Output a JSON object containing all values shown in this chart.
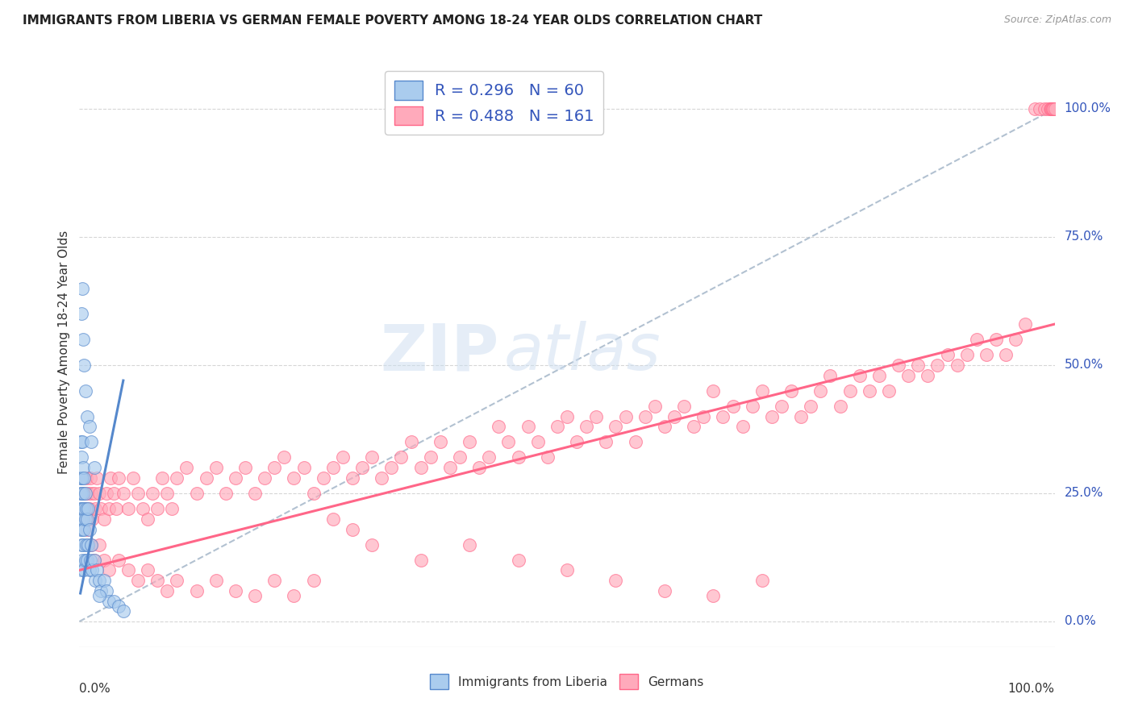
{
  "title": "IMMIGRANTS FROM LIBERIA VS GERMAN FEMALE POVERTY AMONG 18-24 YEAR OLDS CORRELATION CHART",
  "source": "Source: ZipAtlas.com",
  "ylabel": "Female Poverty Among 18-24 Year Olds",
  "xlim": [
    0,
    1.0
  ],
  "ylim": [
    -0.05,
    1.1
  ],
  "yticks_right": [
    0.0,
    0.25,
    0.5,
    0.75,
    1.0
  ],
  "ytick_labels_right": [
    "0.0%",
    "25.0%",
    "50.0%",
    "75.0%",
    "100.0%"
  ],
  "watermark_zip": "ZIP",
  "watermark_atlas": "atlas",
  "blue_color": "#5588CC",
  "blue_fill": "#AACCEE",
  "pink_color": "#FF6688",
  "pink_fill": "#FFAABB",
  "blue_label": "Immigrants from Liberia",
  "pink_label": "Germans",
  "blue_R": "0.296",
  "blue_N": "60",
  "pink_R": "0.488",
  "pink_N": "161",
  "legend_color": "#3355BB",
  "grid_color": "#CCCCCC",
  "background_color": "#FFFFFF",
  "blue_scatter_x": [
    0.001,
    0.001,
    0.001,
    0.001,
    0.001,
    0.002,
    0.002,
    0.002,
    0.002,
    0.002,
    0.002,
    0.002,
    0.003,
    0.003,
    0.003,
    0.003,
    0.003,
    0.004,
    0.004,
    0.004,
    0.004,
    0.005,
    0.005,
    0.005,
    0.005,
    0.006,
    0.006,
    0.006,
    0.007,
    0.007,
    0.008,
    0.008,
    0.009,
    0.009,
    0.01,
    0.01,
    0.011,
    0.012,
    0.013,
    0.015,
    0.016,
    0.018,
    0.02,
    0.022,
    0.025,
    0.028,
    0.03,
    0.035,
    0.04,
    0.045,
    0.002,
    0.003,
    0.004,
    0.005,
    0.006,
    0.008,
    0.01,
    0.012,
    0.015,
    0.02
  ],
  "blue_scatter_y": [
    0.18,
    0.22,
    0.25,
    0.28,
    0.35,
    0.1,
    0.15,
    0.2,
    0.22,
    0.25,
    0.28,
    0.32,
    0.12,
    0.18,
    0.22,
    0.28,
    0.35,
    0.15,
    0.2,
    0.25,
    0.3,
    0.1,
    0.18,
    0.22,
    0.28,
    0.12,
    0.2,
    0.25,
    0.15,
    0.22,
    0.12,
    0.2,
    0.15,
    0.22,
    0.1,
    0.18,
    0.12,
    0.15,
    0.1,
    0.12,
    0.08,
    0.1,
    0.08,
    0.06,
    0.08,
    0.06,
    0.04,
    0.04,
    0.03,
    0.02,
    0.6,
    0.65,
    0.55,
    0.5,
    0.45,
    0.4,
    0.38,
    0.35,
    0.3,
    0.05
  ],
  "pink_scatter_x": [
    0.005,
    0.006,
    0.007,
    0.008,
    0.009,
    0.01,
    0.011,
    0.012,
    0.013,
    0.015,
    0.016,
    0.018,
    0.02,
    0.022,
    0.025,
    0.028,
    0.03,
    0.032,
    0.035,
    0.038,
    0.04,
    0.045,
    0.05,
    0.055,
    0.06,
    0.065,
    0.07,
    0.075,
    0.08,
    0.085,
    0.09,
    0.095,
    0.1,
    0.11,
    0.12,
    0.13,
    0.14,
    0.15,
    0.16,
    0.17,
    0.18,
    0.19,
    0.2,
    0.21,
    0.22,
    0.23,
    0.24,
    0.25,
    0.26,
    0.27,
    0.28,
    0.29,
    0.3,
    0.31,
    0.32,
    0.33,
    0.34,
    0.35,
    0.36,
    0.37,
    0.38,
    0.39,
    0.4,
    0.41,
    0.42,
    0.43,
    0.44,
    0.45,
    0.46,
    0.47,
    0.48,
    0.49,
    0.5,
    0.51,
    0.52,
    0.53,
    0.54,
    0.55,
    0.56,
    0.57,
    0.58,
    0.59,
    0.6,
    0.61,
    0.62,
    0.63,
    0.64,
    0.65,
    0.66,
    0.67,
    0.68,
    0.69,
    0.7,
    0.71,
    0.72,
    0.73,
    0.74,
    0.75,
    0.76,
    0.77,
    0.78,
    0.79,
    0.8,
    0.81,
    0.82,
    0.83,
    0.84,
    0.85,
    0.86,
    0.87,
    0.88,
    0.89,
    0.9,
    0.91,
    0.92,
    0.93,
    0.94,
    0.95,
    0.96,
    0.97,
    0.98,
    0.985,
    0.99,
    0.993,
    0.995,
    0.996,
    0.997,
    0.998,
    0.999,
    1.0,
    0.008,
    0.012,
    0.015,
    0.02,
    0.025,
    0.03,
    0.04,
    0.05,
    0.06,
    0.07,
    0.08,
    0.09,
    0.1,
    0.12,
    0.14,
    0.16,
    0.18,
    0.2,
    0.22,
    0.24,
    0.26,
    0.28,
    0.3,
    0.35,
    0.4,
    0.45,
    0.5,
    0.55,
    0.6,
    0.65,
    0.7
  ],
  "pink_scatter_y": [
    0.25,
    0.22,
    0.28,
    0.2,
    0.25,
    0.22,
    0.28,
    0.25,
    0.2,
    0.25,
    0.22,
    0.28,
    0.25,
    0.22,
    0.2,
    0.25,
    0.22,
    0.28,
    0.25,
    0.22,
    0.28,
    0.25,
    0.22,
    0.28,
    0.25,
    0.22,
    0.2,
    0.25,
    0.22,
    0.28,
    0.25,
    0.22,
    0.28,
    0.3,
    0.25,
    0.28,
    0.3,
    0.25,
    0.28,
    0.3,
    0.25,
    0.28,
    0.3,
    0.32,
    0.28,
    0.3,
    0.25,
    0.28,
    0.3,
    0.32,
    0.28,
    0.3,
    0.32,
    0.28,
    0.3,
    0.32,
    0.35,
    0.3,
    0.32,
    0.35,
    0.3,
    0.32,
    0.35,
    0.3,
    0.32,
    0.38,
    0.35,
    0.32,
    0.38,
    0.35,
    0.32,
    0.38,
    0.4,
    0.35,
    0.38,
    0.4,
    0.35,
    0.38,
    0.4,
    0.35,
    0.4,
    0.42,
    0.38,
    0.4,
    0.42,
    0.38,
    0.4,
    0.45,
    0.4,
    0.42,
    0.38,
    0.42,
    0.45,
    0.4,
    0.42,
    0.45,
    0.4,
    0.42,
    0.45,
    0.48,
    0.42,
    0.45,
    0.48,
    0.45,
    0.48,
    0.45,
    0.5,
    0.48,
    0.5,
    0.48,
    0.5,
    0.52,
    0.5,
    0.52,
    0.55,
    0.52,
    0.55,
    0.52,
    0.55,
    0.58,
    1.0,
    1.0,
    1.0,
    1.0,
    1.0,
    1.0,
    1.0,
    1.0,
    1.0,
    1.0,
    0.18,
    0.15,
    0.12,
    0.15,
    0.12,
    0.1,
    0.12,
    0.1,
    0.08,
    0.1,
    0.08,
    0.06,
    0.08,
    0.06,
    0.08,
    0.06,
    0.05,
    0.08,
    0.05,
    0.08,
    0.2,
    0.18,
    0.15,
    0.12,
    0.15,
    0.12,
    0.1,
    0.08,
    0.06,
    0.05,
    0.08
  ],
  "blue_trend_x": [
    0.001,
    0.045
  ],
  "blue_trend_y": [
    0.055,
    0.47
  ],
  "pink_trend_x": [
    0.0,
    1.0
  ],
  "pink_trend_y": [
    0.1,
    0.58
  ],
  "diag_color": "#AABBCC"
}
